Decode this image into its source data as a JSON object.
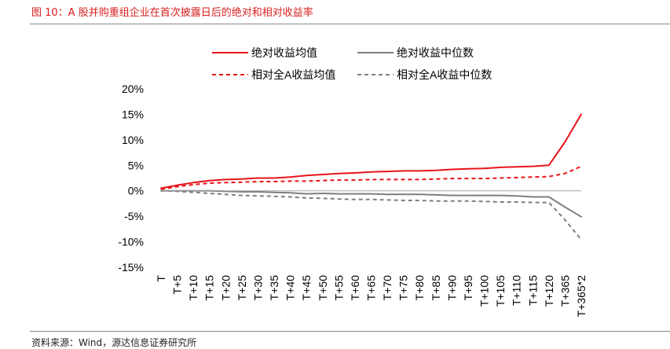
{
  "header": {
    "title": "图 10：A 股并购重组企业在首次披露日后的绝对和相对收益率"
  },
  "footer": {
    "source": "资料来源：Wind，源达信息证券研究所"
  },
  "colors": {
    "red": "#e8141a",
    "gray": "#7f7f7f",
    "title_red": "#d81e1e"
  },
  "chart_data": {
    "type": "line",
    "title": "",
    "xlabel": "",
    "ylabel": "",
    "categories": [
      "T",
      "T+5",
      "T+10",
      "T+15",
      "T+20",
      "T+25",
      "T+30",
      "T+35",
      "T+40",
      "T+45",
      "T+50",
      "T+55",
      "T+60",
      "T+65",
      "T+70",
      "T+75",
      "T+80",
      "T+85",
      "T+90",
      "T+95",
      "T+100",
      "T+105",
      "T+110",
      "T+115",
      "T+120",
      "T+365",
      "T+365*2"
    ],
    "y_tick_labels": [
      "20%",
      "15%",
      "10%",
      "5%",
      "0%",
      "-5%",
      "-10%",
      "-15%"
    ],
    "ylim": [
      -15,
      20
    ],
    "y_unit": "%",
    "grid": false,
    "legend_position": "top",
    "series": [
      {
        "name": "绝对收益均值",
        "color": "#e8141a",
        "dash": false,
        "values": [
          0.5,
          1.1,
          1.6,
          2.0,
          2.2,
          2.3,
          2.5,
          2.5,
          2.7,
          3.0,
          3.2,
          3.4,
          3.5,
          3.7,
          3.8,
          3.9,
          3.9,
          4.0,
          4.2,
          4.3,
          4.4,
          4.6,
          4.7,
          4.8,
          5.0,
          9.6,
          15.0
        ]
      },
      {
        "name": "绝对收益中位数",
        "color": "#7f7f7f",
        "dash": false,
        "values": [
          0.0,
          0.0,
          0.0,
          0.0,
          -0.1,
          -0.2,
          -0.2,
          -0.3,
          -0.4,
          -0.6,
          -0.5,
          -0.6,
          -0.6,
          -0.6,
          -0.7,
          -0.7,
          -0.7,
          -0.8,
          -0.9,
          -0.9,
          -0.9,
          -0.9,
          -1.0,
          -1.2,
          -1.2,
          -3.2,
          -5.1
        ]
      },
      {
        "name": "相对全A收益均值",
        "color": "#e8141a",
        "dash": true,
        "values": [
          0.3,
          0.8,
          1.2,
          1.5,
          1.6,
          1.7,
          1.8,
          1.8,
          1.9,
          1.9,
          2.0,
          2.1,
          2.1,
          2.2,
          2.2,
          2.2,
          2.2,
          2.3,
          2.4,
          2.4,
          2.4,
          2.5,
          2.6,
          2.7,
          2.8,
          3.4,
          4.8
        ]
      },
      {
        "name": "相对全A收益中位数",
        "color": "#7f7f7f",
        "dash": true,
        "values": [
          0.0,
          -0.1,
          -0.3,
          -0.5,
          -0.7,
          -0.9,
          -1.0,
          -1.1,
          -1.2,
          -1.4,
          -1.5,
          -1.6,
          -1.7,
          -1.7,
          -1.8,
          -1.9,
          -1.9,
          -2.0,
          -2.0,
          -2.0,
          -2.1,
          -2.2,
          -2.2,
          -2.3,
          -2.3,
          -5.7,
          -9.6
        ]
      }
    ]
  }
}
